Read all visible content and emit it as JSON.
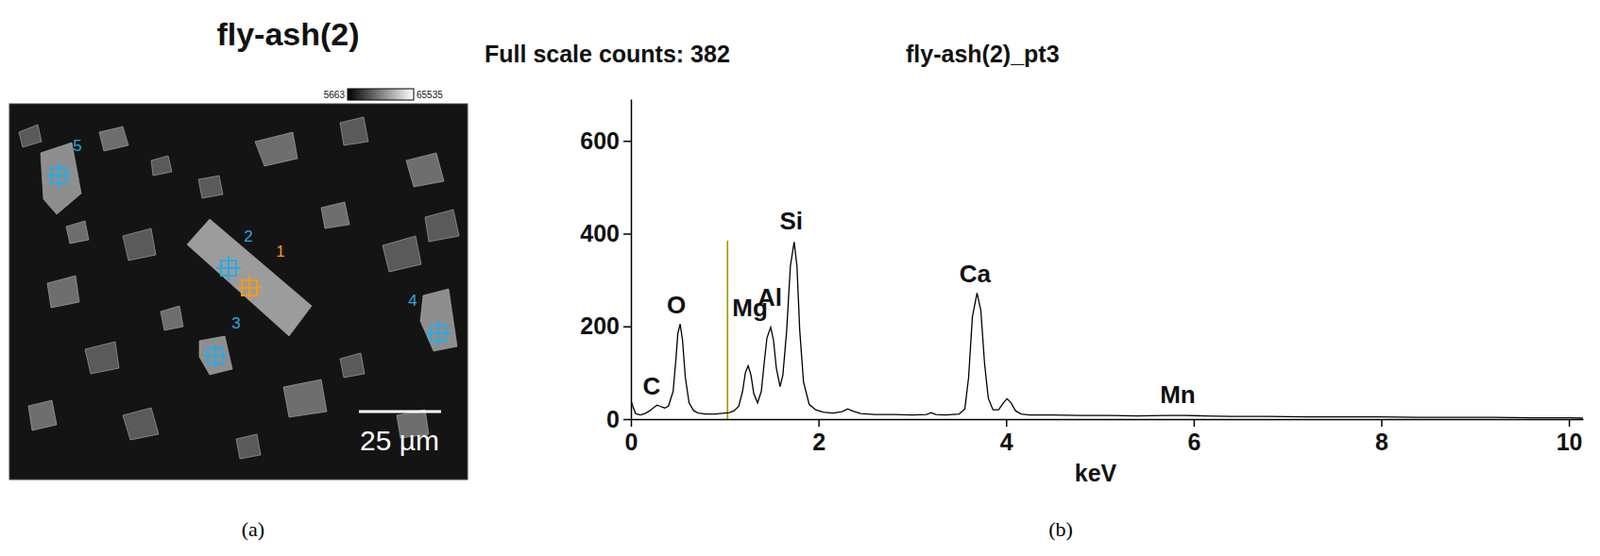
{
  "chart_data": [
    {
      "type": "image",
      "title": "fly-ash(2)",
      "color_bar": {
        "range": [
          5663,
          65535
        ]
      },
      "points": [
        1,
        2,
        3,
        4,
        5
      ],
      "colors": [
        "#f39a1e",
        "#2aaae2",
        "#2aaae2",
        "#2aaae2",
        "#2aaae2"
      ],
      "scale_bar": "25 µm",
      "panel_label": "(a)"
    },
    {
      "type": "line",
      "title": "fly-ash(2)_pt3",
      "subtitle": "Full scale counts: 382",
      "x_label": "keV",
      "x": [
        0,
        0.02,
        0.05,
        0.1,
        0.15,
        0.2,
        0.25,
        0.28,
        0.32,
        0.36,
        0.4,
        0.45,
        0.48,
        0.5,
        0.525,
        0.55,
        0.58,
        0.62,
        0.67,
        0.72,
        0.8,
        0.9,
        1.0,
        1.05,
        1.1,
        1.15,
        1.19,
        1.22,
        1.25,
        1.28,
        1.31,
        1.35,
        1.39,
        1.42,
        1.45,
        1.49,
        1.52,
        1.55,
        1.59,
        1.62,
        1.66,
        1.7,
        1.74,
        1.77,
        1.8,
        1.84,
        1.9,
        1.97,
        2.05,
        2.15,
        2.25,
        2.31,
        2.37,
        2.45,
        2.6,
        2.8,
        3.0,
        3.15,
        3.2,
        3.25,
        3.35,
        3.5,
        3.56,
        3.6,
        3.64,
        3.69,
        3.73,
        3.77,
        3.81,
        3.86,
        3.92,
        3.97,
        4.01,
        4.05,
        4.1,
        4.16,
        4.25,
        4.5,
        4.8,
        5.1,
        5.4,
        5.7,
        5.9,
        6.1,
        6.4,
        6.8,
        7.2,
        7.6,
        8.0,
        8.4,
        8.8,
        9.2,
        9.6,
        10.0,
        10.15
      ],
      "values": [
        40,
        28,
        12,
        9,
        12,
        18,
        26,
        30,
        27,
        24,
        28,
        60,
        130,
        185,
        205,
        170,
        90,
        35,
        18,
        13,
        11,
        11,
        13,
        14,
        18,
        28,
        60,
        100,
        115,
        95,
        55,
        35,
        60,
        120,
        175,
        198,
        170,
        110,
        70,
        95,
        190,
        330,
        382,
        330,
        190,
        80,
        32,
        20,
        15,
        13,
        16,
        22,
        17,
        12,
        10,
        10,
        9,
        10,
        14,
        10,
        9,
        11,
        22,
        90,
        220,
        272,
        235,
        120,
        45,
        20,
        20,
        35,
        44,
        36,
        18,
        11,
        9,
        9,
        8,
        8,
        7,
        8,
        8,
        7,
        6,
        6,
        5,
        5,
        5,
        4,
        4,
        4,
        3,
        3,
        2
      ],
      "color": "#000000",
      "xlim": [
        0,
        10.15
      ],
      "xticks": [
        0,
        2,
        4,
        6,
        8,
        10
      ],
      "ylim": [
        0,
        690
      ],
      "yticks": [
        0,
        200,
        400,
        600
      ],
      "annotations": [
        {
          "text": "C",
          "x": 0.22,
          "y": 53
        },
        {
          "text": "O",
          "x": 0.485,
          "y": 228
        },
        {
          "text": "Mg",
          "x": 1.27,
          "y": 222
        },
        {
          "text": "Al",
          "x": 1.48,
          "y": 244
        },
        {
          "text": "Si",
          "x": 1.71,
          "y": 409
        },
        {
          "text": "Ca",
          "x": 3.67,
          "y": 295
        },
        {
          "text": "Mn",
          "x": 5.83,
          "y": 35
        }
      ],
      "cursor": {
        "x": 1.03,
        "y": [
          0,
          385
        ],
        "color": "#9a9a00"
      },
      "panel_label": "(b)"
    }
  ]
}
